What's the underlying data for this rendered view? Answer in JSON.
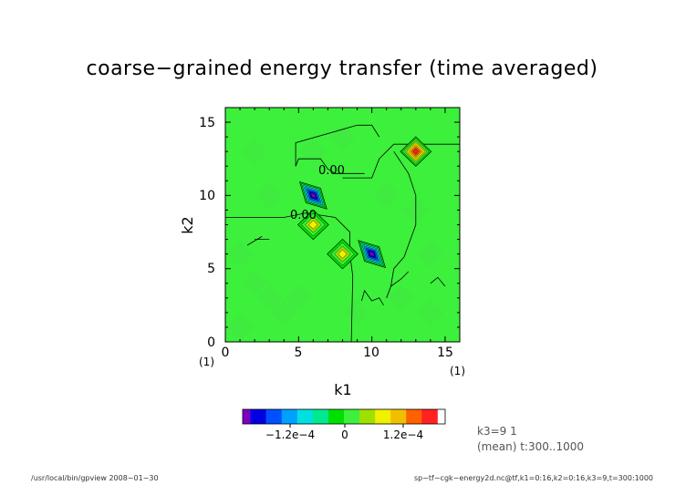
{
  "chart_data": {
    "type": "heatmap",
    "title": "coarse−grained energy transfer (time averaged)",
    "xlabel": "k1",
    "ylabel": "k2",
    "xlim": [
      0,
      16
    ],
    "ylim": [
      0,
      16
    ],
    "x_ticks": [
      "0",
      "5",
      "10",
      "15"
    ],
    "y_ticks": [
      "0",
      "5",
      "10",
      "15"
    ],
    "x_unit": "(1)",
    "y_unit": "(1)",
    "background_level": 0,
    "peaks": [
      {
        "k1": 6,
        "k2": 10,
        "value": -0.00028
      },
      {
        "k1": 10,
        "k2": 6,
        "value": -0.00028
      },
      {
        "k1": 13,
        "k2": 13,
        "value": 0.00026
      },
      {
        "k1": 6,
        "k2": 8,
        "value": 0.00012
      },
      {
        "k1": 8,
        "k2": 6,
        "value": 0.00013
      }
    ],
    "contour_labels": [
      "0.00",
      "0.00"
    ],
    "colorbar": {
      "colors": [
        "#7e00c0",
        "#0000e0",
        "#0050ff",
        "#00a0ff",
        "#00e0e0",
        "#00e890",
        "#00e000",
        "#3cf03c",
        "#a0e000",
        "#f0f000",
        "#f0c000",
        "#ff6000",
        "#ff2020"
      ],
      "tick_labels": [
        "−1.2e−4",
        "0",
        "1.2e−4"
      ]
    },
    "info": {
      "line1": "k3=9  1",
      "line2": "(mean) t:300..1000"
    }
  },
  "footer": {
    "left": "/usr/local/bin/gpview  2008−01−30",
    "right": "sp−tf−cgk−energy2d.nc@tf,k1=0:16,k2=0:16,k3=9,t=300:1000"
  }
}
